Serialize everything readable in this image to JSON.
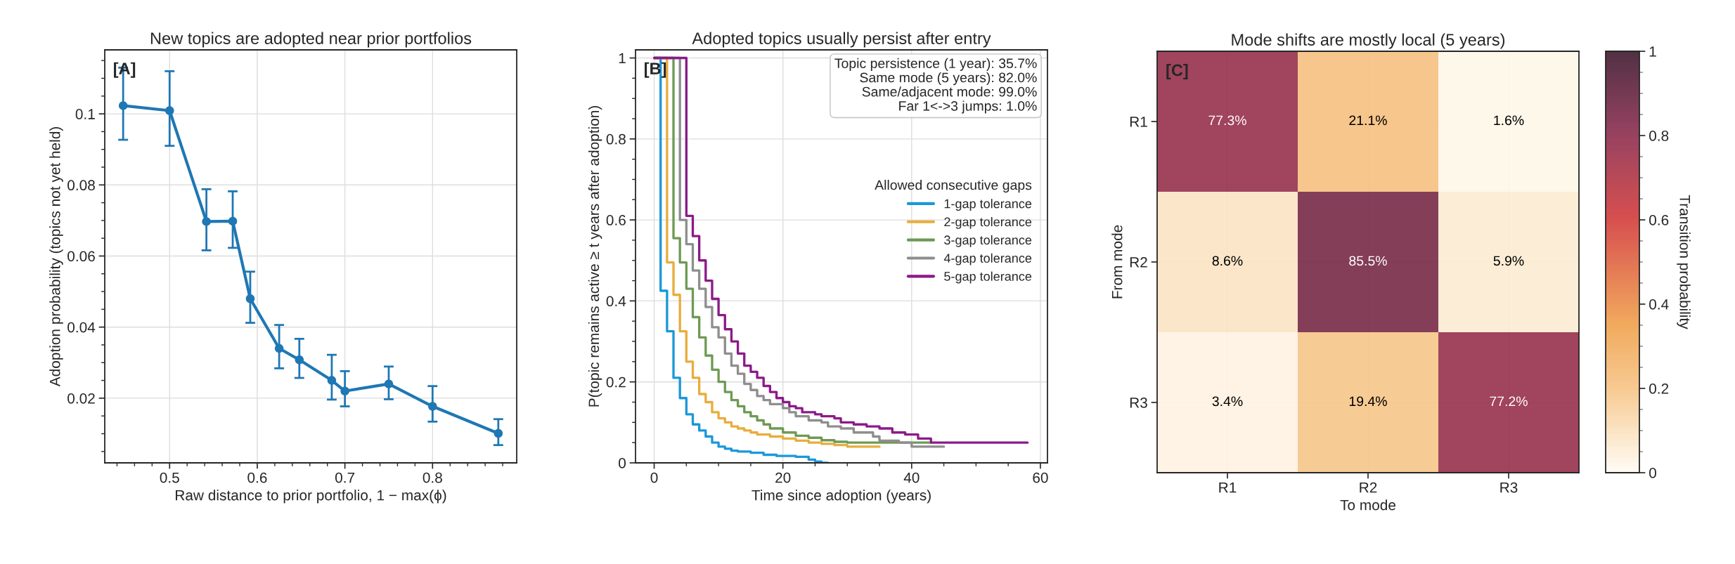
{
  "chart_data": [
    {
      "type": "line",
      "title": "New topics are adopted near prior portfolios",
      "xlabel": "Raw distance to prior portfolio, 1 − max(ϕ)",
      "ylabel": "Adoption probability (topics not yet held)",
      "x": [
        0.447,
        0.5,
        0.542,
        0.572,
        0.592,
        0.625,
        0.648,
        0.685,
        0.7,
        0.75,
        0.8,
        0.875
      ],
      "series": [
        {
          "color": "#1f77b4",
          "values": [
            0.1023,
            0.1009,
            0.0697,
            0.0698,
            0.048,
            0.034,
            0.0308,
            0.025,
            0.022,
            0.024,
            0.0177,
            0.0101
          ],
          "errors": [
            [
              0.0927,
              0.113
            ],
            [
              0.091,
              0.112
            ],
            [
              0.0616,
              0.0788
            ],
            [
              0.0623,
              0.0782
            ],
            [
              0.0412,
              0.0556
            ],
            [
              0.0284,
              0.0406
            ],
            [
              0.0257,
              0.0367
            ],
            [
              0.0196,
              0.0322
            ],
            [
              0.0177,
              0.0276
            ],
            [
              0.0197,
              0.0289
            ],
            [
              0.0134,
              0.0234
            ],
            [
              0.0068,
              0.0141
            ]
          ]
        }
      ],
      "xlim": [
        0.426,
        0.896
      ],
      "ylim": [
        0.0018,
        0.118
      ],
      "xticks": [
        0.5,
        0.6,
        0.7,
        0.8
      ],
      "yticks": [
        0.02,
        0.04,
        0.06,
        0.08,
        0.1
      ],
      "marker": "circle",
      "line_style": "solid",
      "grid": true,
      "annotations": [
        "[A]"
      ]
    },
    {
      "type": "step",
      "title": "Adopted topics usually persist after entry",
      "xlabel": "Time since adoption (years)",
      "ylabel": "P(topic remains active ≥ t years after adoption)",
      "legend_title": "Allowed consecutive gaps",
      "series": [
        {
          "name": "1-gap tolerance",
          "color": "#1b98d8",
          "x": [
            0,
            1,
            2,
            3,
            4,
            5,
            6,
            7,
            8,
            9,
            10,
            11,
            12,
            13,
            15,
            17,
            19,
            22,
            24,
            25,
            26,
            27
          ],
          "values": [
            1,
            0.425,
            0.325,
            0.21,
            0.16,
            0.12,
            0.095,
            0.08,
            0.065,
            0.05,
            0.04,
            0.035,
            0.03,
            0.028,
            0.025,
            0.02,
            0.017,
            0.015,
            0.008,
            0.003,
            0,
            0
          ]
        },
        {
          "name": "2-gap tolerance",
          "color": "#e8ad3d",
          "x": [
            0,
            2,
            3,
            4,
            5,
            6,
            7,
            8,
            9,
            10,
            11,
            12,
            13,
            14,
            15,
            16,
            18,
            20,
            22,
            24,
            26,
            28,
            30,
            35
          ],
          "values": [
            1,
            0.495,
            0.415,
            0.325,
            0.25,
            0.21,
            0.17,
            0.15,
            0.125,
            0.11,
            0.1,
            0.09,
            0.085,
            0.08,
            0.075,
            0.07,
            0.065,
            0.06,
            0.055,
            0.05,
            0.047,
            0.044,
            0.04,
            0.04
          ]
        },
        {
          "name": "3-gap tolerance",
          "color": "#6e9a54",
          "x": [
            0,
            3,
            4,
            5,
            6,
            7,
            8,
            9,
            10,
            11,
            12,
            13,
            14,
            15,
            16,
            17,
            18,
            20,
            22,
            24,
            26,
            28,
            30,
            43
          ],
          "values": [
            1,
            0.555,
            0.495,
            0.43,
            0.36,
            0.31,
            0.265,
            0.23,
            0.2,
            0.175,
            0.155,
            0.14,
            0.125,
            0.115,
            0.105,
            0.095,
            0.085,
            0.075,
            0.067,
            0.062,
            0.056,
            0.052,
            0.05,
            0.05
          ]
        },
        {
          "name": "4-gap tolerance",
          "color": "#8e8e8e",
          "x": [
            0,
            4,
            5,
            6,
            7,
            8,
            9,
            10,
            11,
            12,
            13,
            14,
            15,
            16,
            17,
            18,
            20,
            21,
            22,
            24,
            26,
            27,
            29,
            31,
            34,
            35,
            38,
            40,
            45
          ],
          "values": [
            1,
            0.6,
            0.54,
            0.475,
            0.43,
            0.385,
            0.335,
            0.31,
            0.27,
            0.24,
            0.22,
            0.195,
            0.18,
            0.165,
            0.155,
            0.145,
            0.135,
            0.125,
            0.115,
            0.105,
            0.1,
            0.09,
            0.085,
            0.075,
            0.065,
            0.055,
            0.05,
            0.04,
            0.04
          ]
        },
        {
          "name": "5-gap tolerance",
          "color": "#8b1a89",
          "x": [
            0,
            5,
            6,
            7,
            8,
            9,
            10,
            11,
            12,
            13,
            14,
            15,
            16,
            17,
            18,
            19,
            20,
            21,
            22,
            23,
            25,
            26,
            28,
            29,
            31,
            33,
            35,
            37,
            39,
            41,
            43,
            58
          ],
          "values": [
            1,
            0.61,
            0.56,
            0.5,
            0.45,
            0.405,
            0.365,
            0.33,
            0.3,
            0.27,
            0.24,
            0.225,
            0.21,
            0.19,
            0.175,
            0.16,
            0.15,
            0.14,
            0.135,
            0.125,
            0.12,
            0.115,
            0.11,
            0.1,
            0.095,
            0.09,
            0.085,
            0.075,
            0.07,
            0.06,
            0.05,
            0.05
          ]
        }
      ],
      "xlim": [
        -2.9,
        61.1
      ],
      "ylim": [
        0,
        1.02
      ],
      "xticks": [
        0,
        20,
        40,
        60
      ],
      "yticks": [
        0,
        0.2,
        0.4,
        0.6,
        0.8,
        1
      ],
      "grid": true,
      "legend": "right",
      "line_style": "solid",
      "annotations": [
        "[B]",
        "Topic persistence (1 year): 35.7%",
        "Same mode (5 years): 82.0%",
        "Same/adjacent mode: 99.0%",
        "Far 1<->3 jumps: 1.0%"
      ]
    },
    {
      "type": "heatmap",
      "title": "Mode shifts are mostly local (5 years)",
      "xlabel": "To mode",
      "ylabel": "From mode",
      "clabel": "Transition probability",
      "categories": [
        "R1",
        "R2",
        "R3"
      ],
      "y_categories": [
        "R1",
        "R2",
        "R3"
      ],
      "cells": [
        [
          0.773,
          0.211,
          0.016
        ],
        [
          0.086,
          0.855,
          0.059
        ],
        [
          0.034,
          0.194,
          0.772
        ]
      ],
      "cell_labels": [
        [
          "77.3%",
          "21.1%",
          "1.6%"
        ],
        [
          "8.6%",
          "85.5%",
          "5.9%"
        ],
        [
          "3.4%",
          "19.4%",
          "77.2%"
        ]
      ],
      "clim": [
        0,
        1
      ],
      "cticks": [
        0,
        0.2,
        0.4,
        0.6,
        0.8,
        1
      ],
      "grid": true,
      "annotations": [
        "[C]"
      ]
    }
  ]
}
